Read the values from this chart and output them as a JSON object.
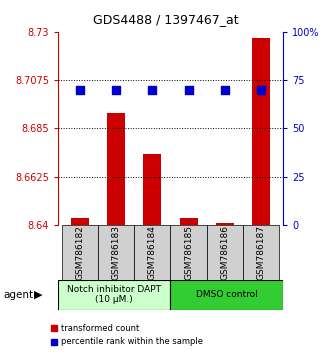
{
  "title": "GDS4488 / 1397467_at",
  "samples": [
    "GSM786182",
    "GSM786183",
    "GSM786184",
    "GSM786185",
    "GSM786186",
    "GSM786187"
  ],
  "bar_values": [
    8.643,
    8.692,
    8.673,
    8.643,
    8.641,
    8.727
  ],
  "percentile_values_pct": [
    70,
    70,
    70,
    70,
    70,
    70
  ],
  "bar_base": 8.64,
  "ylim_left": [
    8.64,
    8.73
  ],
  "yticks_left": [
    8.64,
    8.6625,
    8.685,
    8.7075,
    8.73
  ],
  "ytick_labels_left": [
    "8.64",
    "8.6625",
    "8.685",
    "8.7075",
    "8.73"
  ],
  "ylim_right": [
    0,
    100
  ],
  "yticks_right": [
    0,
    25,
    50,
    75,
    100
  ],
  "ytick_labels_right": [
    "0",
    "25",
    "50",
    "75",
    "100%"
  ],
  "bar_color": "#cc0000",
  "dot_color": "#0000cc",
  "group1_label": "Notch inhibitor DAPT\n(10 μM.)",
  "group2_label": "DMSO control",
  "group1_color": "#ccffcc",
  "group2_color": "#33cc33",
  "agent_label": "agent",
  "legend_bar_label": "transformed count",
  "legend_dot_label": "percentile rank within the sample",
  "bar_width": 0.5,
  "dot_size": 30,
  "left_axis_color": "#cc0000",
  "right_axis_color": "#0000cc",
  "tick_fontsize": 7,
  "title_fontsize": 9
}
